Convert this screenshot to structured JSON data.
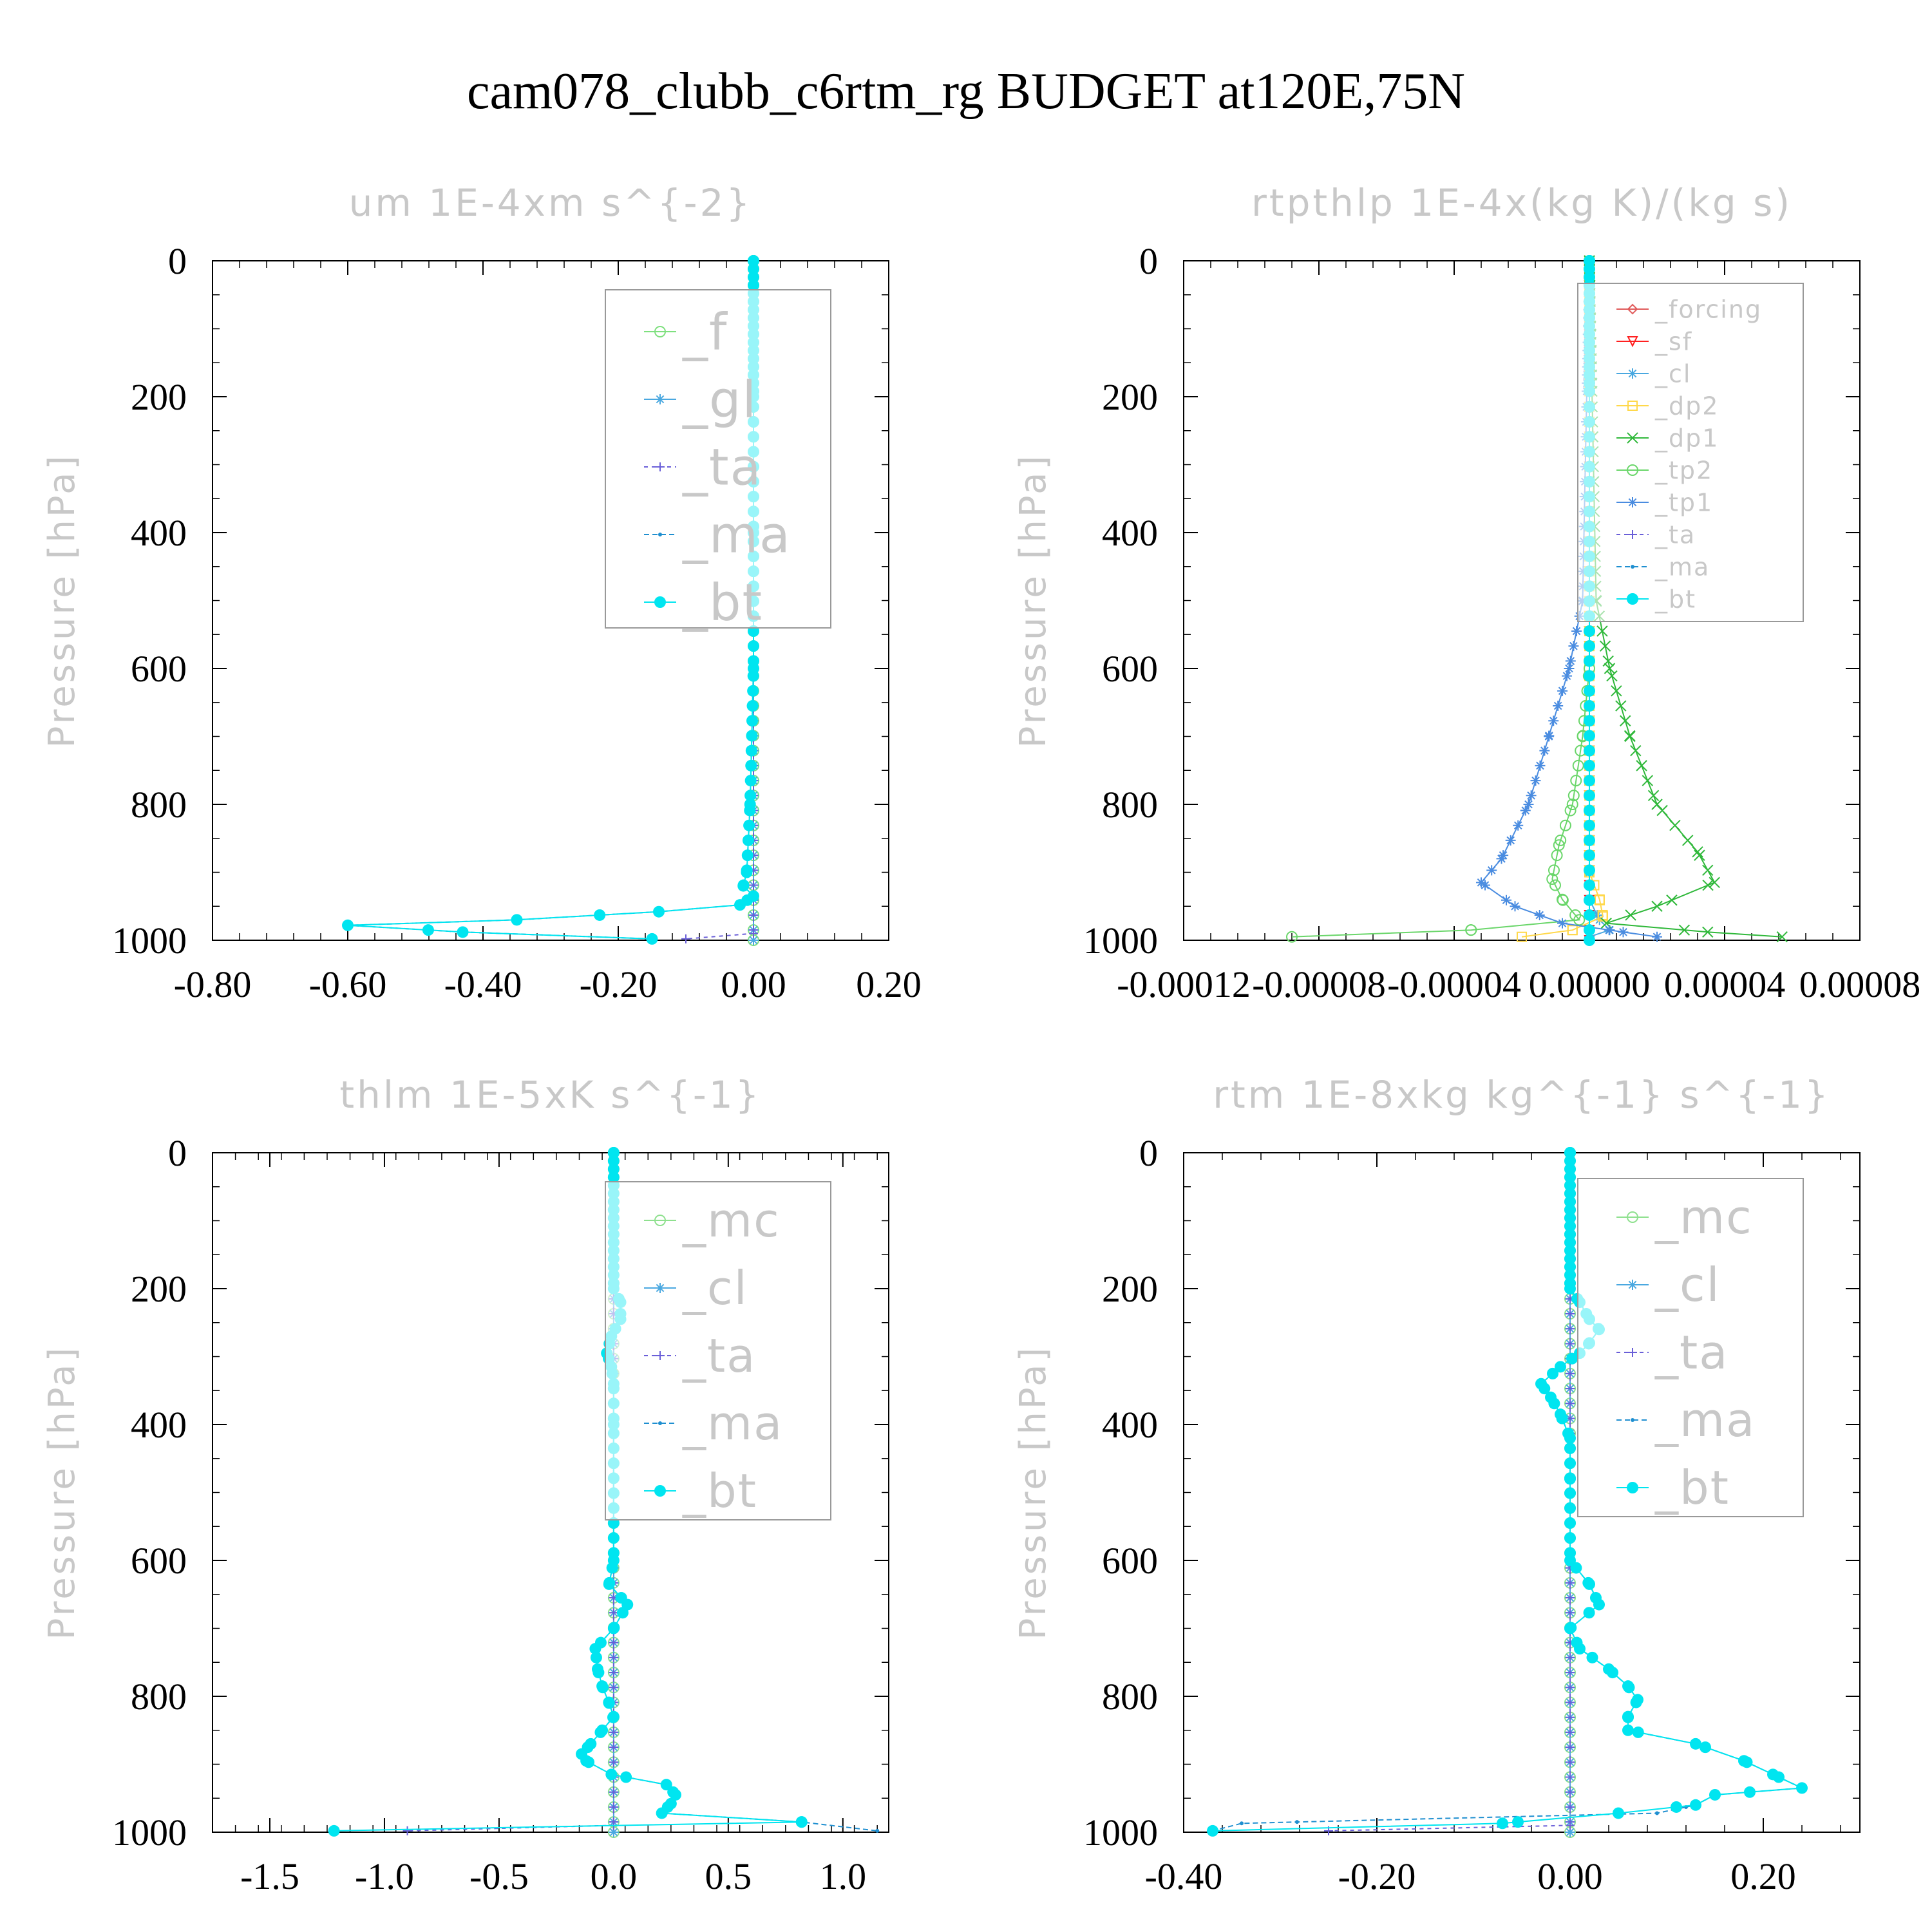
{
  "title": "cam078_clubb_c6rtm_rg  BUDGET at120E,75N",
  "colors": {
    "bt": "#00e5f0",
    "ma": "#1f8fd0",
    "ta": "#6a5fd8",
    "cl": "#4aa8e0",
    "tp1": "#4a8ce0",
    "tp2": "#6ad66a",
    "dp1": "#2fb83a",
    "dp2": "#ffd84a",
    "f": "#7ee07e",
    "mc": "#8ee08e",
    "forcing": "#e05a5a",
    "sf": "#ff2020",
    "faint_text": "#c8c8c8"
  },
  "chart_data": [
    {
      "type": "line",
      "title": "um  1E-4xm s^{-2}",
      "ylabel": "Pressure [hPa]",
      "xlim": [
        -0.8,
        0.2
      ],
      "ylim": [
        1000,
        0
      ],
      "xticks": [
        "-0.80",
        "-0.60",
        "-0.40",
        "-0.20",
        "0.00",
        "0.20"
      ],
      "yticks": [
        "0",
        "200",
        "400",
        "600",
        "800",
        "1000"
      ],
      "legend": "top-right",
      "series": [
        {
          "name": "_f",
          "p": [
            0,
            1000
          ],
          "values": [
            0.0,
            0.0
          ]
        },
        {
          "name": "_gl",
          "p": [
            0,
            1000
          ],
          "values": [
            0.0,
            0.0
          ]
        },
        {
          "name": "_ta",
          "p": [
            0,
            990,
            998
          ],
          "values": [
            0.0,
            0.0,
            -0.1
          ]
        },
        {
          "name": "_ma",
          "p": [
            0,
            200,
            400,
            600,
            800,
            900,
            920,
            935,
            948,
            958,
            970,
            978,
            988,
            998
          ],
          "values": [
            0.0,
            0.0,
            0.0,
            0.0,
            -0.005,
            -0.01,
            -0.015,
            0.0,
            -0.02,
            -0.14,
            -0.35,
            -0.6,
            -0.43,
            -0.15
          ]
        },
        {
          "name": "_bt",
          "p": [
            0,
            200,
            400,
            600,
            800,
            900,
            920,
            935,
            948,
            958,
            970,
            978,
            988,
            998
          ],
          "values": [
            0.0,
            0.0,
            0.0,
            0.0,
            -0.005,
            -0.01,
            -0.015,
            0.0,
            -0.02,
            -0.14,
            -0.35,
            -0.6,
            -0.43,
            -0.15
          ]
        }
      ]
    },
    {
      "type": "line",
      "title": "rtpthlp  1E-4x(kg K)/(kg s)",
      "ylabel": "Pressure [hPa]",
      "xlim": [
        -0.00012,
        8e-05
      ],
      "ylim": [
        1000,
        0
      ],
      "xticks": [
        "-0.00012",
        "-0.00008",
        "-0.00004",
        "0.00000",
        "0.00004",
        "0.00008"
      ],
      "yticks": [
        "0",
        "200",
        "400",
        "600",
        "800",
        "1000"
      ],
      "legend": "top-right",
      "series": [
        {
          "name": "_forcing",
          "p": [
            0,
            1000
          ],
          "values": [
            0.0,
            0.0
          ]
        },
        {
          "name": "_sf",
          "p": [
            0,
            1000
          ],
          "values": [
            0.0,
            0.0
          ]
        },
        {
          "name": "_cl",
          "p": [
            0,
            900,
            940,
            970,
            985,
            995
          ],
          "values": [
            0.0,
            0.0,
            0.0,
            3e-06,
            6e-06,
            0.0
          ]
        },
        {
          "name": "_dp2",
          "p": [
            0,
            900,
            940,
            965,
            985,
            995
          ],
          "values": [
            0.0,
            0.0,
            3e-06,
            4e-06,
            -5e-06,
            -2e-05
          ]
        },
        {
          "name": "_dp1",
          "p": [
            0,
            500,
            600,
            700,
            800,
            870,
            915,
            950,
            975,
            988,
            995
          ],
          "values": [
            0.0,
            2e-06,
            6e-06,
            1.2e-05,
            2e-05,
            3.2e-05,
            3.7e-05,
            2e-05,
            5e-06,
            3.5e-05,
            5.7e-05
          ]
        },
        {
          "name": "_tp2",
          "p": [
            0,
            600,
            700,
            800,
            860,
            910,
            940,
            970,
            985,
            995
          ],
          "values": [
            0.0,
            0.0,
            -2e-06,
            -5e-06,
            -9e-06,
            -1.1e-05,
            -8e-06,
            -3e-06,
            -3.5e-05,
            -8.8e-05
          ]
        },
        {
          "name": "_tp1",
          "p": [
            0,
            500,
            600,
            700,
            800,
            880,
            915,
            950,
            975,
            988,
            995
          ],
          "values": [
            0.0,
            -2e-06,
            -6e-06,
            -1.2e-05,
            -1.8e-05,
            -2.6e-05,
            -3.2e-05,
            -2.2e-05,
            -8e-06,
            1e-05,
            2e-05
          ]
        },
        {
          "name": "_ta",
          "p": [
            0,
            1000
          ],
          "values": [
            0.0,
            0.0
          ]
        },
        {
          "name": "_ma",
          "p": [
            0,
            1000
          ],
          "values": [
            0.0,
            0.0
          ]
        },
        {
          "name": "_bt",
          "p": [
            0,
            1000
          ],
          "values": [
            0.0,
            0.0
          ]
        }
      ]
    },
    {
      "type": "line",
      "title": "thlm  1E-5xK s^{-1}",
      "ylabel": "Pressure [hPa]",
      "xlim": [
        -1.75,
        1.2
      ],
      "ylim": [
        1000,
        0
      ],
      "xticks": [
        "-1.5",
        "-1.0",
        "-0.5",
        "0.0",
        "0.5",
        "1.0"
      ],
      "yticks": [
        "0",
        "200",
        "400",
        "600",
        "800",
        "1000"
      ],
      "legend": "top-right",
      "series": [
        {
          "name": "_mc",
          "p": [
            0,
            1000
          ],
          "values": [
            0.0,
            0.0
          ]
        },
        {
          "name": "_cl",
          "p": [
            0,
            1000
          ],
          "values": [
            0.0,
            0.0
          ]
        },
        {
          "name": "_ta",
          "p": [
            0,
            990,
            998
          ],
          "values": [
            0.0,
            0.0,
            -0.9
          ]
        },
        {
          "name": "_ma",
          "p": [
            0,
            200,
            220,
            245,
            270,
            295,
            315,
            340,
            400,
            600,
            635,
            665,
            700,
            730,
            760,
            785,
            810,
            830,
            850,
            870,
            885,
            895,
            915,
            930,
            945,
            958,
            972,
            985,
            998
          ],
          "values": [
            0.0,
            0.0,
            0.03,
            0.03,
            -0.01,
            -0.03,
            -0.01,
            0.0,
            0.0,
            0.0,
            -0.02,
            0.06,
            0.0,
            -0.08,
            -0.07,
            -0.05,
            -0.02,
            0.0,
            -0.05,
            -0.1,
            -0.14,
            -0.12,
            -0.01,
            0.23,
            0.27,
            0.25,
            0.21,
            0.82,
            1.15
          ]
        },
        {
          "name": "_bt",
          "p": [
            0,
            200,
            220,
            245,
            270,
            295,
            315,
            340,
            400,
            600,
            635,
            665,
            700,
            730,
            760,
            785,
            810,
            830,
            850,
            870,
            885,
            895,
            915,
            930,
            945,
            958,
            972,
            985,
            998
          ],
          "values": [
            0.0,
            0.0,
            0.03,
            0.03,
            -0.01,
            -0.03,
            -0.01,
            0.0,
            0.0,
            0.0,
            -0.02,
            0.06,
            0.0,
            -0.08,
            -0.07,
            -0.05,
            -0.02,
            0.0,
            -0.05,
            -0.1,
            -0.14,
            -0.12,
            -0.01,
            0.23,
            0.27,
            0.25,
            0.21,
            0.82,
            -1.22
          ]
        }
      ]
    },
    {
      "type": "line",
      "title": "rtm  1E-8xkg kg^{-1} s^{-1}",
      "ylabel": "Pressure [hPa]",
      "xlim": [
        -0.4,
        0.3
      ],
      "ylim": [
        1000,
        0
      ],
      "xticks": [
        "-0.40",
        "-0.20",
        "0.00",
        "0.20"
      ],
      "yticks": [
        "0",
        "200",
        "400",
        "600",
        "800",
        "1000"
      ],
      "legend": "top-right",
      "series": [
        {
          "name": "_mc",
          "p": [
            0,
            1000
          ],
          "values": [
            0.0,
            0.0
          ]
        },
        {
          "name": "_cl",
          "p": [
            0,
            1000
          ],
          "values": [
            0.0,
            0.0
          ]
        },
        {
          "name": "_ta",
          "p": [
            0,
            990,
            998
          ],
          "values": [
            0.0,
            0.0,
            -0.25
          ]
        },
        {
          "name": "_ma",
          "p": [
            0,
            200,
            220,
            245,
            260,
            280,
            295,
            315,
            340,
            360,
            385,
            420,
            480,
            600,
            635,
            665,
            700,
            730,
            760,
            785,
            805,
            830,
            850,
            870,
            895,
            915,
            935,
            945,
            960,
            972,
            987,
            998
          ],
          "values": [
            0.0,
            0.0,
            0.01,
            0.02,
            0.03,
            0.02,
            0.01,
            -0.01,
            -0.03,
            -0.02,
            -0.01,
            0.0,
            0.0,
            0.0,
            0.02,
            0.03,
            0.0,
            0.01,
            0.04,
            0.06,
            0.07,
            0.06,
            0.06,
            0.13,
            0.18,
            0.21,
            0.24,
            0.15,
            0.13,
            0.09,
            -0.34,
            -0.37
          ]
        },
        {
          "name": "_bt",
          "p": [
            0,
            200,
            220,
            245,
            260,
            280,
            295,
            315,
            340,
            360,
            385,
            420,
            480,
            600,
            635,
            665,
            700,
            730,
            760,
            785,
            805,
            830,
            850,
            870,
            895,
            915,
            935,
            945,
            960,
            972,
            987,
            998
          ],
          "values": [
            0.0,
            0.0,
            0.01,
            0.02,
            0.03,
            0.02,
            0.01,
            -0.01,
            -0.03,
            -0.02,
            -0.01,
            0.0,
            0.0,
            0.0,
            0.02,
            0.03,
            0.0,
            0.01,
            0.04,
            0.06,
            0.07,
            0.06,
            0.06,
            0.13,
            0.18,
            0.21,
            0.24,
            0.15,
            0.13,
            0.05,
            -0.07,
            -0.37
          ]
        }
      ]
    }
  ]
}
